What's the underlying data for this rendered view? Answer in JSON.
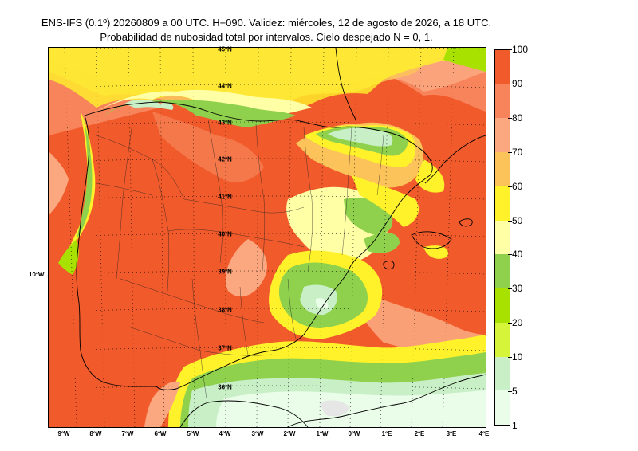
{
  "title_line1": "ENS-IFS (0.1º) 20260809 a 00 UTC. H+090. Validez: miércoles, 12 de agosto de 2026, a 18 UTC.",
  "title_line2": "Probabilidad de nubosidad total por intervalos. Cielo despejado N = 0, 1.",
  "lon_labels": [
    "9ºW",
    "8ºW",
    "7ºW",
    "6ºW",
    "5ºW",
    "4ºW",
    "3ºW",
    "2ºW",
    "1ºW",
    "0ºW",
    "1ºE",
    "2ºE",
    "3ºE",
    "4ºE"
  ],
  "lat_labels": [
    "45ºN",
    "44ºN",
    "43ºN",
    "42ºN",
    "41ºN",
    "40ºN",
    "39ºN",
    "38ºN",
    "37ºN",
    "36ºN"
  ],
  "extra_lon_label": "10ºW",
  "colorbar": {
    "labels": [
      "100",
      "90",
      "80",
      "70",
      "60",
      "50",
      "40",
      "30",
      "20",
      "10",
      "5",
      "1"
    ],
    "colors": [
      "#f15a2b",
      "#f7845a",
      "#fba77f",
      "#fcc35a",
      "#fff22a",
      "#ffffa6",
      "#8fd14d",
      "#a8e100",
      "#d6f53a",
      "#c8efc6",
      "#e9fde9"
    ]
  },
  "map_colors": {
    "background_high": "#f15a2b",
    "p90": "#f7845a",
    "p80": "#fba77f",
    "p70": "#fcc35a",
    "p60": "#fff22a",
    "p50": "#ffffa6",
    "p40": "#8fd14d",
    "p20": "#d6f53a",
    "p10": "#c8efc6",
    "p5": "#e9fde9",
    "gray": "#e6e6e6"
  }
}
